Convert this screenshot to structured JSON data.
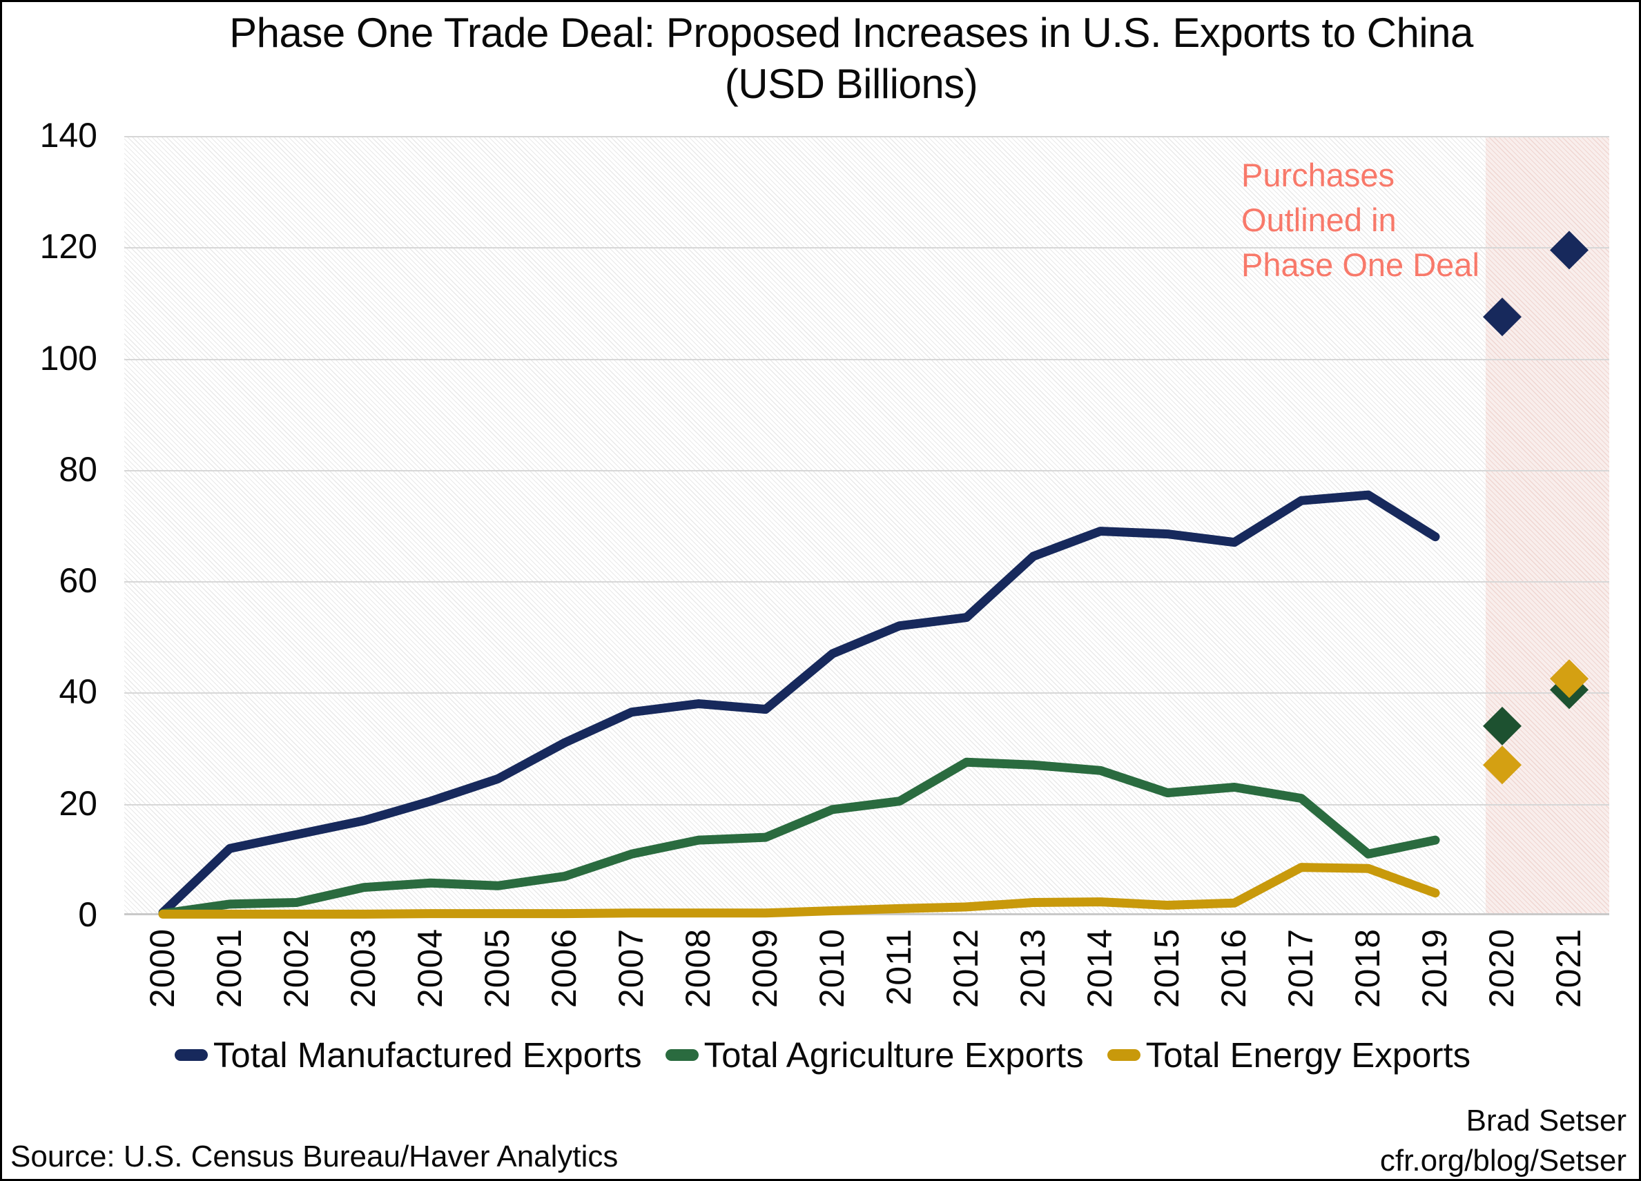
{
  "title": {
    "line1": "Phase One Trade Deal: Proposed Increases in U.S. Exports to China",
    "line2": "(USD Billions)"
  },
  "colors": {
    "manufactured": "#17295c",
    "agriculture": "#2a6b3f",
    "agriculture_marker": "#1d5130",
    "energy": "#c8990b",
    "energy_marker": "#d4a012",
    "annotation": "#f8796a",
    "grid": "#d7d7d7",
    "band_base": "#f9eeec"
  },
  "chart_data": {
    "type": "line",
    "title": "Phase One Trade Deal: Proposed Increases in U.S. Exports to China (USD Billions)",
    "xlabel": "",
    "ylabel": "USD Billions",
    "ylim": [
      0,
      140
    ],
    "y_ticks": [
      0,
      20,
      40,
      60,
      80,
      100,
      120,
      140
    ],
    "x_ticks": [
      2000,
      2001,
      2002,
      2003,
      2004,
      2005,
      2006,
      2007,
      2008,
      2009,
      2010,
      2011,
      2012,
      2013,
      2014,
      2015,
      2016,
      2017,
      2018,
      2019,
      2020,
      2021
    ],
    "grid": "horizontal",
    "x": [
      2000,
      2001,
      2002,
      2003,
      2004,
      2005,
      2006,
      2007,
      2008,
      2009,
      2010,
      2011,
      2012,
      2013,
      2014,
      2015,
      2016,
      2017,
      2018,
      2019
    ],
    "series": [
      {
        "name": "Total Manufactured Exports",
        "color": "#17295c",
        "values": [
          0.5,
          12,
          14.5,
          17,
          20.5,
          24.5,
          31,
          36.5,
          38,
          37,
          47,
          52,
          53.5,
          64.5,
          69,
          68.5,
          67,
          74.5,
          75.5,
          68
        ]
      },
      {
        "name": "Total Agriculture Exports",
        "color": "#2a6b3f",
        "values": [
          0.3,
          2,
          2.3,
          5,
          5.8,
          5.3,
          7,
          11,
          13.5,
          14,
          19,
          20.5,
          27.5,
          27,
          26,
          22,
          23,
          21,
          11,
          13.5
        ]
      },
      {
        "name": "Total Energy Exports",
        "color": "#c8990b",
        "values": [
          0.2,
          0.2,
          0.2,
          0.2,
          0.3,
          0.3,
          0.3,
          0.4,
          0.4,
          0.4,
          0.8,
          1.2,
          1.5,
          2.3,
          2.4,
          1.8,
          2.2,
          8.6,
          8.4,
          4
        ]
      }
    ],
    "phase_one_targets": [
      {
        "name": "Total Manufactured Exports",
        "color": "#17295c",
        "years": [
          2020,
          2021
        ],
        "values": [
          107.5,
          119.5
        ]
      },
      {
        "name": "Total Agriculture Exports",
        "color": "#1d5130",
        "years": [
          2020,
          2021
        ],
        "values": [
          34,
          40.5
        ]
      },
      {
        "name": "Total Energy Exports",
        "color": "#d4a012",
        "years": [
          2020,
          2021
        ],
        "values": [
          27,
          42.5
        ]
      }
    ],
    "highlight_region": {
      "from_year": 2019.75,
      "to_year": 2021.6,
      "label": "Purchases Outlined in Phase One Deal"
    }
  },
  "legend": [
    {
      "label": "Total Manufactured Exports",
      "color": "#17295c"
    },
    {
      "label": "Total Agriculture Exports",
      "color": "#2a6b3f"
    },
    {
      "label": "Total Energy Exports",
      "color": "#c8990b"
    }
  ],
  "annotation": {
    "lines": [
      "Purchases",
      "Outlined in",
      "Phase One Deal"
    ]
  },
  "footer": {
    "source": "Source: U.S. Census Bureau/Haver Analytics",
    "credit_line1": "Brad Setser",
    "credit_line2": "cfr.org/blog/Setser"
  }
}
